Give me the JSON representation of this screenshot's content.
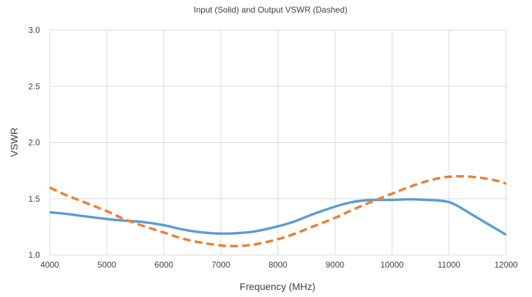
{
  "chart_data": {
    "type": "line",
    "title": "Input (Solid) and Output VSWR (Dashed)",
    "xlabel": "Frequency (MHz)",
    "ylabel": "VSWR",
    "xlim": [
      4000,
      12000
    ],
    "ylim": [
      1.0,
      3.0
    ],
    "x_ticks": [
      4000,
      5000,
      6000,
      7000,
      8000,
      9000,
      10000,
      11000,
      12000
    ],
    "x_tick_labels": [
      "4000",
      "5000",
      "6000",
      "7000",
      "8000",
      "9000",
      "10000",
      "11000",
      "12000"
    ],
    "y_ticks": [
      1.0,
      1.5,
      2.0,
      2.5,
      3.0
    ],
    "y_tick_labels": [
      "1.0",
      "1.5",
      "2.0",
      "2.5",
      "3.0"
    ],
    "grid": "vertical and horizontal",
    "legend": "none",
    "series": [
      {
        "style": "solid",
        "color": "#5b9bd5",
        "x": [
          4000,
          4300,
          4600,
          5000,
          5300,
          5600,
          6000,
          6300,
          6600,
          7000,
          7300,
          7600,
          8000,
          8300,
          8600,
          9000,
          9300,
          9600,
          10000,
          10300,
          10600,
          10900,
          11100,
          11400,
          11700,
          12000
        ],
        "y": [
          1.38,
          1.365,
          1.345,
          1.32,
          1.305,
          1.295,
          1.265,
          1.23,
          1.205,
          1.19,
          1.195,
          1.21,
          1.255,
          1.3,
          1.36,
          1.43,
          1.47,
          1.488,
          1.49,
          1.495,
          1.49,
          1.48,
          1.45,
          1.36,
          1.27,
          1.18
        ]
      },
      {
        "style": "dashed",
        "color": "#ed7d31",
        "x": [
          4000,
          4300,
          4600,
          5000,
          5300,
          5600,
          6000,
          6300,
          6600,
          7000,
          7300,
          7600,
          8000,
          8300,
          8600,
          9000,
          9300,
          9600,
          10000,
          10300,
          10600,
          10900,
          11200,
          11500,
          11800,
          12000
        ],
        "y": [
          1.6,
          1.53,
          1.47,
          1.39,
          1.32,
          1.265,
          1.2,
          1.15,
          1.115,
          1.085,
          1.08,
          1.095,
          1.14,
          1.19,
          1.25,
          1.33,
          1.4,
          1.465,
          1.545,
          1.605,
          1.655,
          1.69,
          1.7,
          1.69,
          1.665,
          1.635
        ]
      }
    ]
  }
}
